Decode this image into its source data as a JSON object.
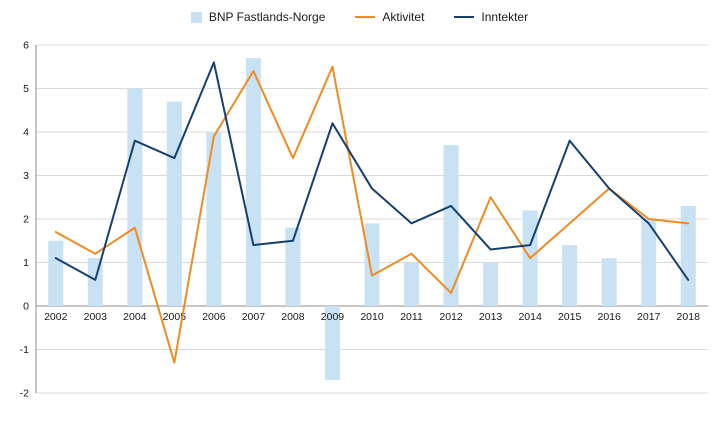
{
  "chart_data": {
    "type": "bar+line",
    "title": "",
    "xlabel": "",
    "ylabel": "",
    "categories": [
      "2002",
      "2003",
      "2004",
      "2005",
      "2006",
      "2007",
      "2008",
      "2009",
      "2010",
      "2011",
      "2012",
      "2013",
      "2014",
      "2015",
      "2016",
      "2017",
      "2018"
    ],
    "series": [
      {
        "name": "BNP Fastlands-Norge",
        "type": "bar",
        "color": "#c9e2f3",
        "values": [
          1.5,
          1.1,
          5.0,
          4.7,
          4.0,
          5.7,
          1.8,
          -1.7,
          1.9,
          1.0,
          3.7,
          1.0,
          2.2,
          1.4,
          1.1,
          2.0,
          2.3
        ]
      },
      {
        "name": "Aktivitet",
        "type": "line",
        "color": "#ef8b22",
        "values": [
          1.7,
          1.2,
          1.8,
          -1.3,
          3.9,
          5.4,
          3.4,
          5.5,
          0.7,
          1.2,
          0.3,
          2.5,
          1.1,
          1.9,
          2.7,
          2.0,
          1.9
        ]
      },
      {
        "name": "Inntekter",
        "type": "line",
        "color": "#17406e",
        "values": [
          1.1,
          0.6,
          3.8,
          3.4,
          5.6,
          1.4,
          1.5,
          4.2,
          2.7,
          1.9,
          2.3,
          1.3,
          1.4,
          3.8,
          2.7,
          1.9,
          0.6
        ]
      }
    ],
    "ylim": [
      -2,
      6
    ],
    "yticks": [
      -2,
      -1,
      0,
      1,
      2,
      3,
      4,
      5,
      6
    ],
    "grid": true,
    "legend_position": "top",
    "colors": {
      "gridline": "#d9d9d9",
      "axis": "#8c8c8c",
      "tick_text": "#1a1a1a"
    }
  }
}
